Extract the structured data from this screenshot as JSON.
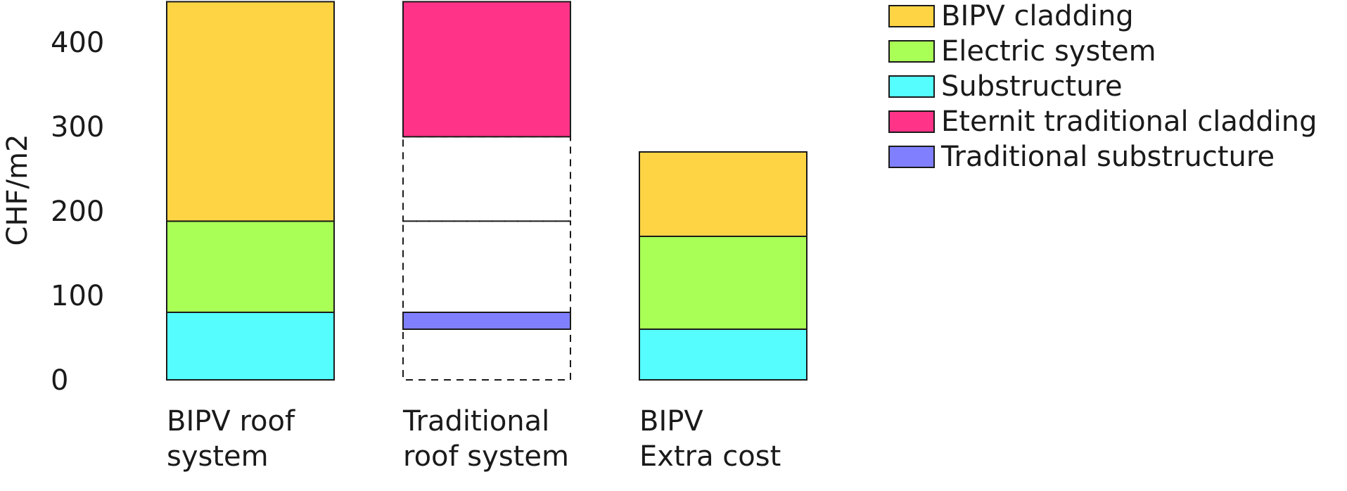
{
  "chart_data": {
    "type": "bar",
    "stacked": true,
    "ylabel": "CHF/m2",
    "ylim": [
      0,
      450
    ],
    "yticks": [
      0,
      100,
      200,
      300,
      400
    ],
    "grid": false,
    "legend_position": "top-right",
    "categories": [
      [
        "BIPV roof",
        "system"
      ],
      [
        "Traditional",
        "roof system"
      ],
      [
        "BIPV",
        "Extra cost"
      ]
    ],
    "series": [
      {
        "name": "Traditional substructure",
        "color": "#8080ff",
        "values": [
          0,
          20,
          0
        ],
        "base": [
          0,
          60,
          0
        ]
      },
      {
        "name": "Substructure",
        "color": "#55fdff",
        "values": [
          80,
          0,
          60
        ],
        "base": [
          0,
          0,
          0
        ]
      },
      {
        "name": "Electric system",
        "color": "#a9ff55",
        "values": [
          108,
          0,
          110
        ],
        "base": [
          80,
          0,
          60
        ]
      },
      {
        "name": "BIPV cladding",
        "color": "#ffd444",
        "values": [
          260,
          0,
          100
        ],
        "base": [
          188,
          0,
          170
        ]
      },
      {
        "name": "Eternit traditional cladding",
        "color": "#ff3388",
        "values": [
          0,
          160,
          0
        ],
        "base": [
          0,
          288,
          0
        ]
      }
    ],
    "reference_outlines": [
      {
        "category_index": 1,
        "segments": [
          [
            0,
            80
          ],
          [
            80,
            188
          ],
          [
            188,
            288
          ]
        ]
      }
    ],
    "legend_order": [
      "BIPV cladding",
      "Electric system",
      "Substructure",
      "Eternit traditional cladding",
      "Traditional substructure"
    ]
  }
}
